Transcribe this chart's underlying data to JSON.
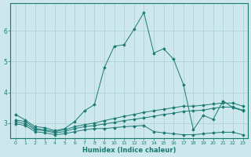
{
  "title": "",
  "xlabel": "Humidex (Indice chaleur)",
  "background_color": "#cce8ec",
  "grid_color": "#aacfd5",
  "line_color": "#1a7a72",
  "xlim": [
    -0.5,
    23.5
  ],
  "ylim": [
    2.5,
    6.9
  ],
  "yticks": [
    3,
    4,
    5,
    6
  ],
  "xticks": [
    0,
    1,
    2,
    3,
    4,
    5,
    6,
    7,
    8,
    9,
    10,
    11,
    12,
    13,
    14,
    15,
    16,
    17,
    18,
    19,
    20,
    21,
    22,
    23
  ],
  "series": [
    {
      "x": [
        0,
        1,
        2,
        3,
        4,
        5,
        6,
        7,
        8,
        9,
        10,
        11,
        12,
        13,
        14,
        15,
        16,
        17,
        18,
        19,
        20,
        21,
        22,
        23
      ],
      "y": [
        3.28,
        3.1,
        2.88,
        2.85,
        2.75,
        2.82,
        3.05,
        3.4,
        3.6,
        4.8,
        5.5,
        5.55,
        6.05,
        6.6,
        5.28,
        5.42,
        5.08,
        4.25,
        2.78,
        3.25,
        3.12,
        3.72,
        3.5,
        3.4
      ]
    },
    {
      "x": [
        0,
        1,
        2,
        3,
        4,
        5,
        6,
        7,
        8,
        9,
        10,
        11,
        12,
        13,
        14,
        15,
        16,
        17,
        18,
        19,
        20,
        21,
        22,
        23
      ],
      "y": [
        3.1,
        3.05,
        2.82,
        2.78,
        2.72,
        2.78,
        2.88,
        2.95,
        3.0,
        3.08,
        3.15,
        3.22,
        3.28,
        3.35,
        3.4,
        3.45,
        3.5,
        3.55,
        3.55,
        3.58,
        3.62,
        3.65,
        3.65,
        3.55
      ]
    },
    {
      "x": [
        0,
        1,
        2,
        3,
        4,
        5,
        6,
        7,
        8,
        9,
        10,
        11,
        12,
        13,
        14,
        15,
        16,
        17,
        18,
        19,
        20,
        21,
        22,
        23
      ],
      "y": [
        3.05,
        2.98,
        2.78,
        2.75,
        2.68,
        2.72,
        2.82,
        2.88,
        2.92,
        2.97,
        3.02,
        3.08,
        3.12,
        3.17,
        3.22,
        3.28,
        3.32,
        3.38,
        3.4,
        3.42,
        3.48,
        3.52,
        3.52,
        3.42
      ]
    },
    {
      "x": [
        0,
        1,
        2,
        3,
        4,
        5,
        6,
        7,
        8,
        9,
        10,
        11,
        12,
        13,
        14,
        15,
        16,
        17,
        18,
        19,
        20,
        21,
        22,
        23
      ],
      "y": [
        2.98,
        2.92,
        2.72,
        2.68,
        2.62,
        2.65,
        2.72,
        2.78,
        2.82,
        2.82,
        2.85,
        2.88,
        2.9,
        2.92,
        2.72,
        2.68,
        2.65,
        2.62,
        2.62,
        2.65,
        2.68,
        2.7,
        2.7,
        2.62
      ]
    }
  ]
}
